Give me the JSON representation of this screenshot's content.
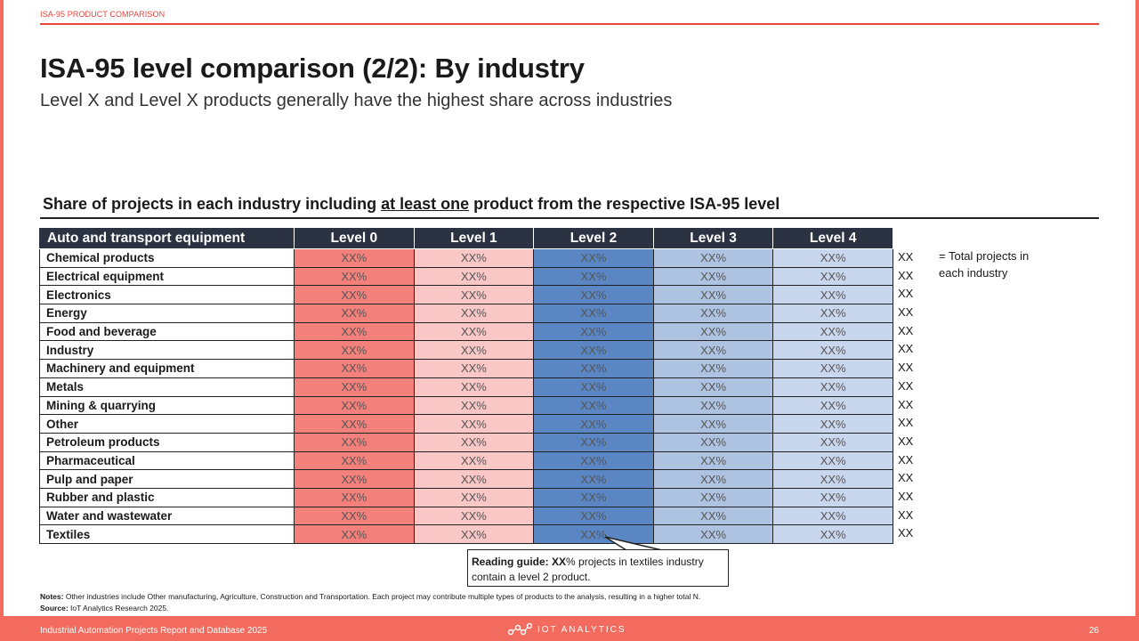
{
  "section_label": "ISA-95 PRODUCT COMPARISON",
  "title": "ISA-95 level comparison (2/2): By industry",
  "subtitle": "Level X and Level X products generally have the highest share across industries",
  "table_heading": {
    "before": "Share of projects in each industry including ",
    "underlined": "at least one",
    "after": " product from the respective ISA-95 level"
  },
  "table": {
    "header_first": "Auto and transport equipment",
    "columns": [
      "Level 0",
      "Level 1",
      "Level 2",
      "Level 3",
      "Level 4"
    ],
    "rows": [
      {
        "industry": "Chemical products",
        "values": [
          "XX%",
          "XX%",
          "XX%",
          "XX%",
          "XX%"
        ],
        "total": "XX"
      },
      {
        "industry": "Electrical equipment",
        "values": [
          "XX%",
          "XX%",
          "XX%",
          "XX%",
          "XX%"
        ],
        "total": "XX"
      },
      {
        "industry": "Electronics",
        "values": [
          "XX%",
          "XX%",
          "XX%",
          "XX%",
          "XX%"
        ],
        "total": "XX"
      },
      {
        "industry": "Energy",
        "values": [
          "XX%",
          "XX%",
          "XX%",
          "XX%",
          "XX%"
        ],
        "total": "XX"
      },
      {
        "industry": "Food and beverage",
        "values": [
          "XX%",
          "XX%",
          "XX%",
          "XX%",
          "XX%"
        ],
        "total": "XX"
      },
      {
        "industry": "Industry",
        "values": [
          "XX%",
          "XX%",
          "XX%",
          "XX%",
          "XX%"
        ],
        "total": "XX"
      },
      {
        "industry": "Machinery and equipment",
        "values": [
          "XX%",
          "XX%",
          "XX%",
          "XX%",
          "XX%"
        ],
        "total": "XX"
      },
      {
        "industry": "Metals",
        "values": [
          "XX%",
          "XX%",
          "XX%",
          "XX%",
          "XX%"
        ],
        "total": "XX"
      },
      {
        "industry": "Mining & quarrying",
        "values": [
          "XX%",
          "XX%",
          "XX%",
          "XX%",
          "XX%"
        ],
        "total": "XX"
      },
      {
        "industry": "Other",
        "values": [
          "XX%",
          "XX%",
          "XX%",
          "XX%",
          "XX%"
        ],
        "total": "XX"
      },
      {
        "industry": "Petroleum products",
        "values": [
          "XX%",
          "XX%",
          "XX%",
          "XX%",
          "XX%"
        ],
        "total": "XX"
      },
      {
        "industry": "Pharmaceutical",
        "values": [
          "XX%",
          "XX%",
          "XX%",
          "XX%",
          "XX%"
        ],
        "total": "XX"
      },
      {
        "industry": "Pulp and paper",
        "values": [
          "XX%",
          "XX%",
          "XX%",
          "XX%",
          "XX%"
        ],
        "total": "XX"
      },
      {
        "industry": "Rubber and plastic",
        "values": [
          "XX%",
          "XX%",
          "XX%",
          "XX%",
          "XX%"
        ],
        "total": "XX"
      },
      {
        "industry": "Water and wastewater",
        "values": [
          "XX%",
          "XX%",
          "XX%",
          "XX%",
          "XX%"
        ],
        "total": "XX"
      },
      {
        "industry": "Textiles",
        "values": [
          "XX%",
          "XX%",
          "XX%",
          "XX%",
          "XX%"
        ],
        "total": "XX"
      }
    ]
  },
  "legend_note": "= Total projects in each industry",
  "reading_guide": {
    "label": "Reading guide:",
    "value": "XX",
    "text": "% projects in textiles industry contain a level 2 product."
  },
  "notes": {
    "label": "Notes:",
    "text": " Other industries include Other manufacturing, Agriculture, Construction and Transportation. Each project may contribute multiple types of products to the analysis, resulting in a higher total N.",
    "source_label": "Source:",
    "source_text": " IoT Analytics Research 2025."
  },
  "footer": {
    "left": "Industrial Automation Projects Report and Database 2025",
    "logo_text": "IOT ANALYTICS",
    "page": "26"
  },
  "colors": {
    "accent": "#e8453c",
    "header_bg": "#2b3242",
    "level0": "#f4807b",
    "level1": "#f9c7c6",
    "level2": "#5a86c4",
    "level3": "#aec3e2",
    "level4": "#c9d7ee"
  }
}
